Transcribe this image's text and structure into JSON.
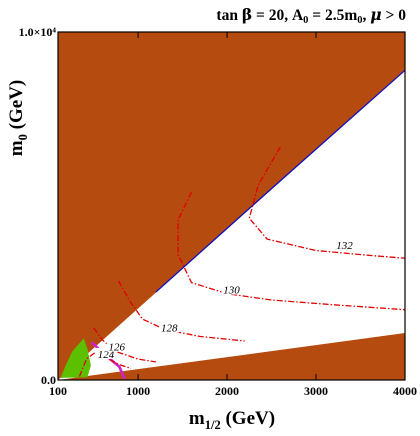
{
  "chart_data": {
    "type": "contour",
    "title": "tan β = 20, A₀ = 2.5m₀,  μ > 0",
    "title_parts": {
      "a": "tan ",
      "b": "β",
      "c": " = 20, A",
      "d": "0",
      "e": " = 2.5m",
      "f": "0",
      "g": ",  ",
      "h": "μ",
      "i": " > 0"
    },
    "xlabel": {
      "main": "m",
      "sub": "1/2",
      "rest": " (GeV)"
    },
    "ylabel": {
      "main": "m",
      "sub": "0",
      "rest": " (GeV)"
    },
    "xlim": [
      100,
      4000
    ],
    "ylim": [
      0,
      10000
    ],
    "x_ticks": [
      {
        "value": 100,
        "label": "100"
      },
      {
        "value": 1000,
        "label": "1000"
      },
      {
        "value": 2000,
        "label": "2000"
      },
      {
        "value": 3000,
        "label": "3000"
      },
      {
        "value": 4000,
        "label": "4000"
      }
    ],
    "y_ticks": [
      {
        "value": 0,
        "label": "0.0"
      },
      {
        "value": 10000,
        "label": "1.0×10⁴"
      }
    ],
    "excluded_region_color": "#b54b0f",
    "higgs_mass_contour_color": "#e00000",
    "boundary_line_color": "#1010c0",
    "magenta_line_color": "#d020d0",
    "green_region_color": "#5cc000",
    "upper_boundary": [
      [
        100,
        0
      ],
      [
        4000,
        8900
      ]
    ],
    "lower_boundary": [
      [
        100,
        0
      ],
      [
        4000,
        1350
      ]
    ],
    "contours": [
      {
        "label": "124",
        "points": [
          [
            340,
            100
          ],
          [
            420,
            600
          ],
          [
            520,
            800
          ],
          [
            780,
            450
          ],
          [
            920,
            330
          ]
        ]
      },
      {
        "label": "126",
        "points": [
          [
            500,
            1500
          ],
          [
            600,
            1150
          ],
          [
            750,
            820
          ],
          [
            1000,
            600
          ],
          [
            1200,
            520
          ]
        ]
      },
      {
        "label": "128",
        "points": [
          [
            780,
            2850
          ],
          [
            900,
            2300
          ],
          [
            1050,
            1750
          ],
          [
            1300,
            1450
          ],
          [
            1700,
            1250
          ],
          [
            2200,
            1120
          ]
        ]
      },
      {
        "label": "130",
        "points": [
          [
            1600,
            5400
          ],
          [
            1450,
            4600
          ],
          [
            1450,
            3600
          ],
          [
            1600,
            2800
          ],
          [
            2000,
            2480
          ],
          [
            2500,
            2300
          ],
          [
            3200,
            2160
          ],
          [
            4000,
            2020
          ]
        ]
      },
      {
        "label": "132",
        "points": [
          [
            2600,
            6700
          ],
          [
            2350,
            5600
          ],
          [
            2250,
            4650
          ],
          [
            2450,
            4050
          ],
          [
            3000,
            3720
          ],
          [
            3600,
            3580
          ],
          [
            4000,
            3500
          ]
        ]
      }
    ],
    "magenta_line": [
      [
        480,
        1080
      ],
      [
        640,
        700
      ],
      [
        790,
        380
      ],
      [
        850,
        30
      ]
    ],
    "green_region": [
      [
        130,
        60
      ],
      [
        180,
        380
      ],
      [
        260,
        820
      ],
      [
        390,
        1200
      ],
      [
        430,
        900
      ],
      [
        470,
        420
      ],
      [
        430,
        80
      ]
    ]
  }
}
